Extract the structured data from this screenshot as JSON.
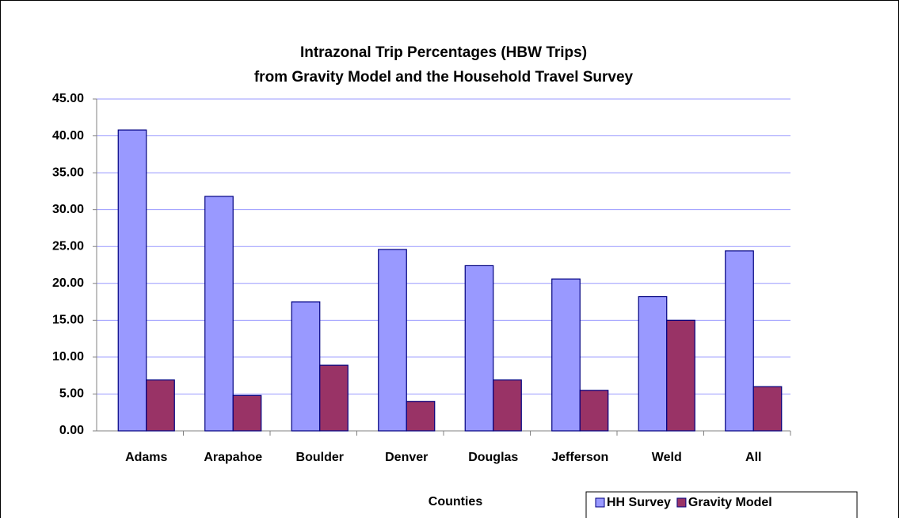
{
  "chart_data": {
    "type": "bar",
    "title": [
      "Intrazonal Trip Percentages (HBW Trips)",
      "from Gravity Model and the Household Travel Survey"
    ],
    "x_label": "Counties",
    "categories": [
      "Adams",
      "Arapahoe",
      "Boulder",
      "Denver",
      "Douglas",
      "Jefferson",
      "Weld",
      "All"
    ],
    "series": [
      {
        "name": "HH Survey",
        "color": "#9999ff",
        "values": [
          40.8,
          31.8,
          17.5,
          24.6,
          22.4,
          20.6,
          18.2,
          24.4
        ]
      },
      {
        "name": "Gravity Model",
        "color": "#993366",
        "values": [
          6.9,
          4.8,
          8.9,
          4.0,
          6.9,
          5.5,
          15.0,
          6.0
        ]
      }
    ],
    "ylim": [
      0,
      45
    ],
    "yticks": [
      {
        "value": 0,
        "label": "0.00"
      },
      {
        "value": 5,
        "label": "5.00"
      },
      {
        "value": 10,
        "label": "10.00"
      },
      {
        "value": 15,
        "label": "15.00"
      },
      {
        "value": 20,
        "label": "20.00"
      },
      {
        "value": 25,
        "label": "25.00"
      },
      {
        "value": 30,
        "label": "30.00"
      },
      {
        "value": 35,
        "label": "35.00"
      },
      {
        "value": 40,
        "label": "40.00"
      },
      {
        "value": 45,
        "label": "45.00"
      }
    ],
    "grid": true,
    "legend": "bottom-right"
  }
}
